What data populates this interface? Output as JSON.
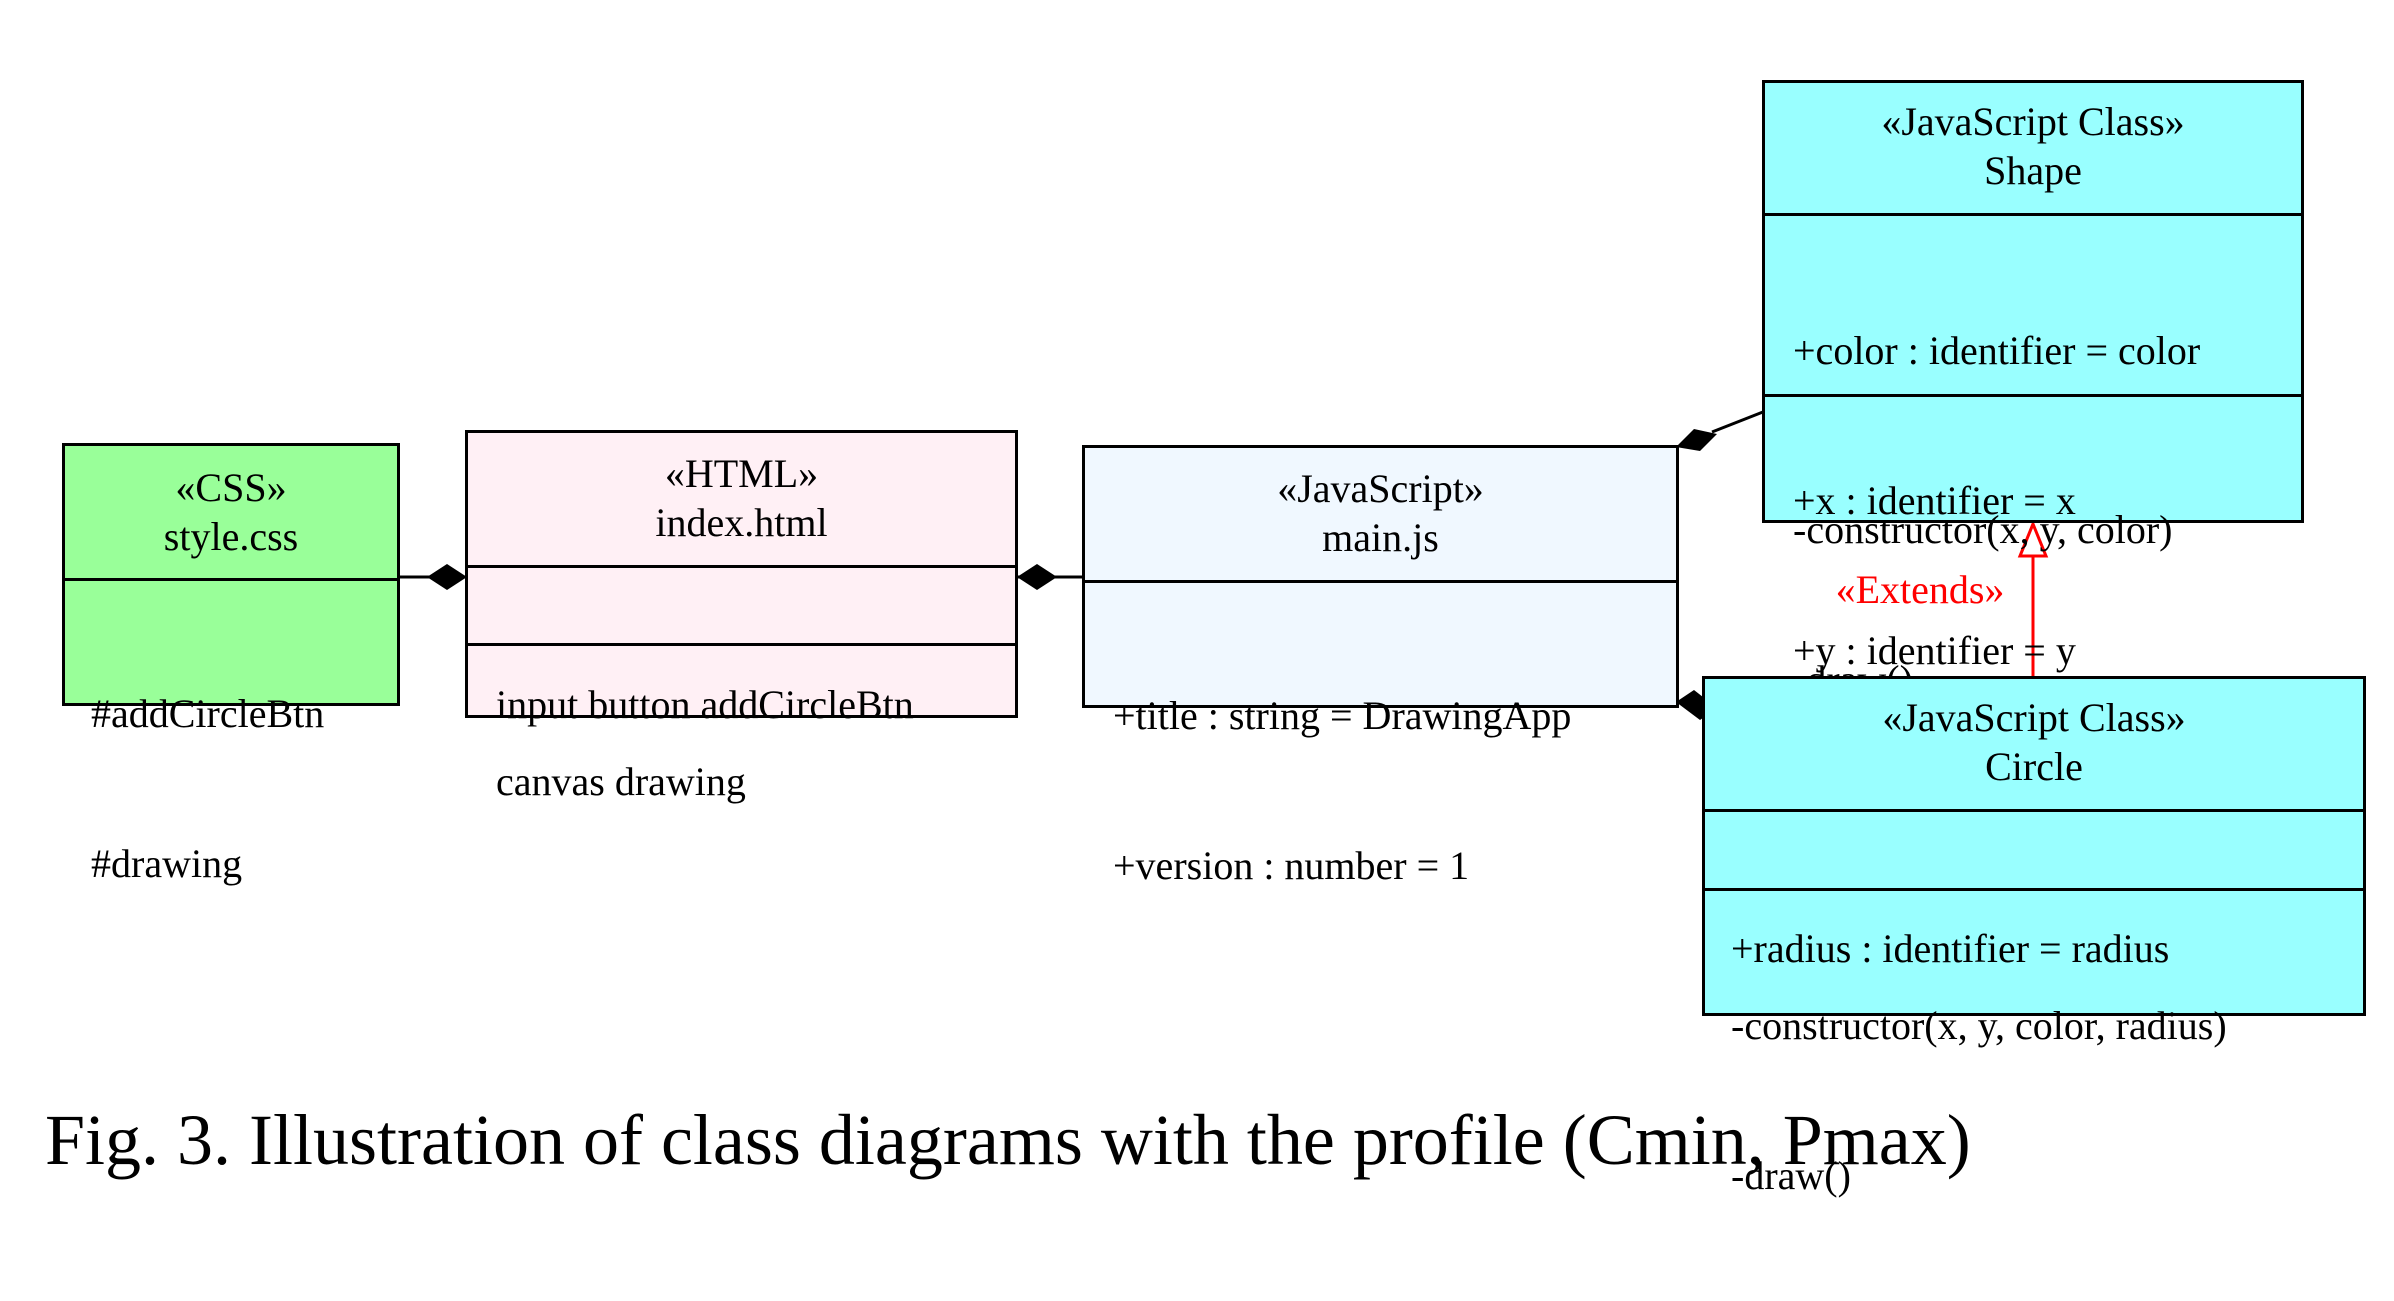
{
  "colors": {
    "css_fill": "#99ff99",
    "html_fill": "#fff0f5",
    "js_fill": "#f0f8ff",
    "class_fill": "#99ffff",
    "extends_color": "#ff0000",
    "border": "#000000"
  },
  "nodes": {
    "css": {
      "stereotype": "«CSS»",
      "name": "style.css",
      "attributes": [
        "#addCircleBtn",
        "#drawing"
      ]
    },
    "html": {
      "stereotype": "«HTML»",
      "name": "index.html",
      "sections": [
        "input button addCircleBtn",
        "canvas drawing"
      ]
    },
    "js": {
      "stereotype": "«JavaScript»",
      "name": "main.js",
      "attributes": [
        "+title : string = DrawingApp",
        "+version : number = 1"
      ]
    },
    "shape": {
      "stereotype": "«JavaScript Class»",
      "name": "Shape",
      "attributes": [
        "+color : identifier = color",
        "+x : identifier = x",
        "+y : identifier = y"
      ],
      "methods": [
        "-constructor(x, y, color)",
        "-draw()"
      ]
    },
    "circle": {
      "stereotype": "«JavaScript Class»",
      "name": "Circle",
      "attributes": [
        "+radius : identifier = radius"
      ],
      "methods": [
        "-constructor(x, y, color, radius)",
        "-draw()"
      ]
    }
  },
  "edges": {
    "extends_label": "«Extends»"
  },
  "caption": {
    "fig": "Fig. 3.",
    "text": "Illustration of class diagrams with the profile (Cmin, Pmax)"
  }
}
